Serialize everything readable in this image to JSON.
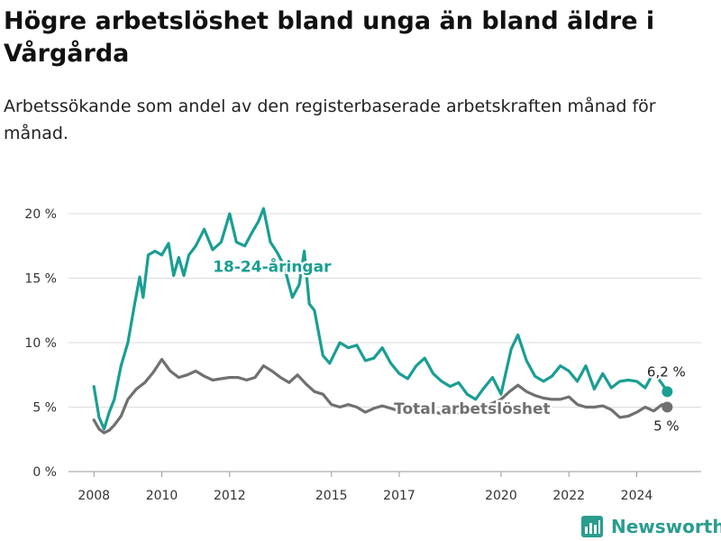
{
  "header": {
    "title": "Högre arbetslöshet bland unga än bland äldre i Vårgårda",
    "subtitle": "Arbetssökande som andel av den registerbaserade arbetskraften månad för månad."
  },
  "footer": {
    "brand": "Newsworthy"
  },
  "colors": {
    "youth": "#1a9e93",
    "total": "#707070",
    "grid": "#dddddd",
    "brand": "#2a9d8f"
  },
  "chart_data": {
    "type": "line",
    "x_unit": "year",
    "xlim": [
      2007.25,
      2025.9
    ],
    "ylim": [
      0,
      20
    ],
    "grid": true,
    "y_ticks": [
      {
        "value": 0,
        "label": "0 %"
      },
      {
        "value": 5,
        "label": "5 %"
      },
      {
        "value": 10,
        "label": "10 %"
      },
      {
        "value": 15,
        "label": "15 %"
      },
      {
        "value": 20,
        "label": "20 %"
      }
    ],
    "x_ticks": [
      {
        "value": 2008,
        "label": "2008"
      },
      {
        "value": 2010,
        "label": "2010"
      },
      {
        "value": 2012,
        "label": "2012"
      },
      {
        "value": 2015,
        "label": "2015"
      },
      {
        "value": 2017,
        "label": "2017"
      },
      {
        "value": 2020,
        "label": "2020"
      },
      {
        "value": 2022,
        "label": "2022"
      },
      {
        "value": 2024,
        "label": "2024"
      }
    ],
    "series": [
      {
        "name": "18-24-åringar",
        "label_position": [
          2013.25,
          15.9
        ],
        "end_label": "6,2 %",
        "points": [
          [
            2008.0,
            6.6
          ],
          [
            2008.15,
            4.2
          ],
          [
            2008.3,
            3.3
          ],
          [
            2008.45,
            4.6
          ],
          [
            2008.6,
            5.6
          ],
          [
            2008.8,
            8.2
          ],
          [
            2009.0,
            10.0
          ],
          [
            2009.2,
            13.0
          ],
          [
            2009.35,
            15.1
          ],
          [
            2009.45,
            13.5
          ],
          [
            2009.6,
            16.8
          ],
          [
            2009.8,
            17.1
          ],
          [
            2010.0,
            16.8
          ],
          [
            2010.2,
            17.7
          ],
          [
            2010.35,
            15.2
          ],
          [
            2010.5,
            16.6
          ],
          [
            2010.65,
            15.2
          ],
          [
            2010.8,
            16.8
          ],
          [
            2011.0,
            17.5
          ],
          [
            2011.25,
            18.8
          ],
          [
            2011.5,
            17.2
          ],
          [
            2011.75,
            17.8
          ],
          [
            2012.0,
            20.0
          ],
          [
            2012.2,
            17.8
          ],
          [
            2012.45,
            17.5
          ],
          [
            2012.65,
            18.5
          ],
          [
            2012.85,
            19.4
          ],
          [
            2013.0,
            20.4
          ],
          [
            2013.2,
            17.8
          ],
          [
            2013.4,
            17.0
          ],
          [
            2013.6,
            16.0
          ],
          [
            2013.85,
            13.5
          ],
          [
            2014.05,
            14.5
          ],
          [
            2014.2,
            17.1
          ],
          [
            2014.35,
            13.0
          ],
          [
            2014.5,
            12.5
          ],
          [
            2014.75,
            9.0
          ],
          [
            2014.95,
            8.4
          ],
          [
            2015.25,
            10.0
          ],
          [
            2015.5,
            9.6
          ],
          [
            2015.75,
            9.8
          ],
          [
            2016.0,
            8.6
          ],
          [
            2016.25,
            8.8
          ],
          [
            2016.5,
            9.6
          ],
          [
            2016.75,
            8.4
          ],
          [
            2017.0,
            7.6
          ],
          [
            2017.25,
            7.2
          ],
          [
            2017.5,
            8.2
          ],
          [
            2017.75,
            8.8
          ],
          [
            2018.0,
            7.6
          ],
          [
            2018.25,
            7.0
          ],
          [
            2018.5,
            6.6
          ],
          [
            2018.75,
            6.9
          ],
          [
            2019.0,
            6.0
          ],
          [
            2019.25,
            5.6
          ],
          [
            2019.5,
            6.5
          ],
          [
            2019.75,
            7.3
          ],
          [
            2020.0,
            6.0
          ],
          [
            2020.3,
            9.5
          ],
          [
            2020.5,
            10.6
          ],
          [
            2020.75,
            8.6
          ],
          [
            2021.0,
            7.4
          ],
          [
            2021.25,
            7.0
          ],
          [
            2021.5,
            7.4
          ],
          [
            2021.75,
            8.2
          ],
          [
            2022.0,
            7.8
          ],
          [
            2022.25,
            7.0
          ],
          [
            2022.5,
            8.2
          ],
          [
            2022.75,
            6.4
          ],
          [
            2023.0,
            7.6
          ],
          [
            2023.25,
            6.5
          ],
          [
            2023.5,
            7.0
          ],
          [
            2023.75,
            7.1
          ],
          [
            2024.0,
            7.0
          ],
          [
            2024.25,
            6.5
          ],
          [
            2024.5,
            7.7
          ],
          [
            2024.75,
            6.8
          ],
          [
            2024.9,
            6.2
          ]
        ]
      },
      {
        "name": "Total arbetslöshet",
        "label_position": [
          2019.15,
          4.9
        ],
        "end_label": "5 %",
        "points": [
          [
            2008.0,
            4.0
          ],
          [
            2008.15,
            3.3
          ],
          [
            2008.3,
            3.0
          ],
          [
            2008.45,
            3.2
          ],
          [
            2008.6,
            3.6
          ],
          [
            2008.8,
            4.3
          ],
          [
            2009.0,
            5.6
          ],
          [
            2009.25,
            6.4
          ],
          [
            2009.5,
            6.9
          ],
          [
            2009.75,
            7.7
          ],
          [
            2010.0,
            8.7
          ],
          [
            2010.25,
            7.8
          ],
          [
            2010.5,
            7.3
          ],
          [
            2010.75,
            7.5
          ],
          [
            2011.0,
            7.8
          ],
          [
            2011.25,
            7.4
          ],
          [
            2011.5,
            7.1
          ],
          [
            2011.75,
            7.2
          ],
          [
            2012.0,
            7.3
          ],
          [
            2012.25,
            7.3
          ],
          [
            2012.5,
            7.1
          ],
          [
            2012.75,
            7.3
          ],
          [
            2013.0,
            8.2
          ],
          [
            2013.25,
            7.8
          ],
          [
            2013.5,
            7.3
          ],
          [
            2013.75,
            6.9
          ],
          [
            2014.0,
            7.5
          ],
          [
            2014.25,
            6.8
          ],
          [
            2014.5,
            6.2
          ],
          [
            2014.75,
            6.0
          ],
          [
            2015.0,
            5.2
          ],
          [
            2015.25,
            5.0
          ],
          [
            2015.5,
            5.2
          ],
          [
            2015.75,
            5.0
          ],
          [
            2016.0,
            4.6
          ],
          [
            2016.25,
            4.9
          ],
          [
            2016.5,
            5.1
          ],
          [
            2016.75,
            4.9
          ],
          [
            2017.0,
            4.7
          ],
          [
            2017.5,
            4.5
          ],
          [
            2018.0,
            4.6
          ],
          [
            2018.5,
            4.4
          ],
          [
            2019.0,
            4.6
          ],
          [
            2019.5,
            5.0
          ],
          [
            2020.0,
            5.6
          ],
          [
            2020.25,
            6.2
          ],
          [
            2020.5,
            6.7
          ],
          [
            2020.75,
            6.2
          ],
          [
            2021.0,
            5.9
          ],
          [
            2021.25,
            5.7
          ],
          [
            2021.5,
            5.6
          ],
          [
            2021.75,
            5.6
          ],
          [
            2022.0,
            5.8
          ],
          [
            2022.25,
            5.2
          ],
          [
            2022.5,
            5.0
          ],
          [
            2022.75,
            5.0
          ],
          [
            2023.0,
            5.1
          ],
          [
            2023.25,
            4.8
          ],
          [
            2023.5,
            4.2
          ],
          [
            2023.75,
            4.3
          ],
          [
            2024.0,
            4.6
          ],
          [
            2024.25,
            5.0
          ],
          [
            2024.5,
            4.7
          ],
          [
            2024.75,
            5.2
          ],
          [
            2024.9,
            5.0
          ]
        ]
      }
    ]
  }
}
